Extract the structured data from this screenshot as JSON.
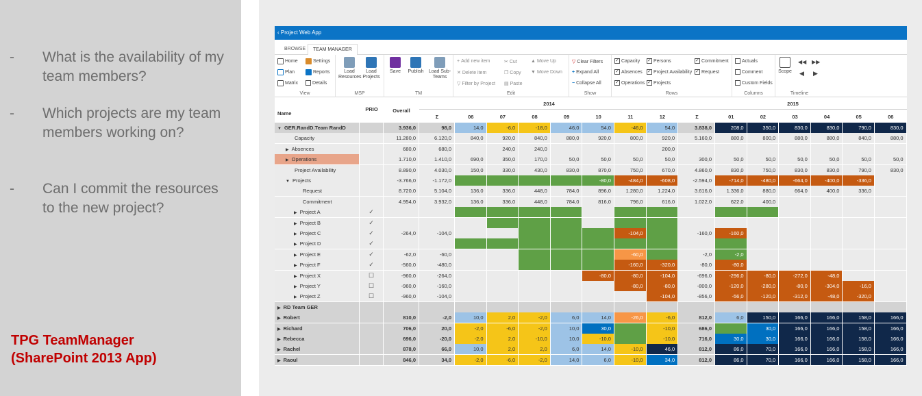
{
  "slide": {
    "questions": [
      "What is the availability of my team members?",
      "Which projects are my team members working on?",
      "Can I commit the resources to the new project?"
    ],
    "dash": "-",
    "brand_line1": "TPG TeamManager",
    "brand_line2": "(SharePoint 2013 App)"
  },
  "app": {
    "title": "Project Web App",
    "tabs": [
      "BROWSE",
      "TEAM MANAGER"
    ],
    "ribbon": {
      "view": {
        "label": "View",
        "home": "Home",
        "settings": "Settings",
        "plan": "Plan",
        "reports": "Reports",
        "matrix": "Matrix",
        "details": "Details"
      },
      "msp": {
        "label": "MSP",
        "load_resources": "Load Resources",
        "load_projects": "Load Projects"
      },
      "tm": {
        "label": "TM",
        "save": "Save",
        "publish": "Publish",
        "load_subteams": "Load Sub-Teams"
      },
      "edit": {
        "label": "Edit",
        "add": "Add new item",
        "delete": "Delete item",
        "filter": "Filter by Project",
        "cut": "Cut",
        "copy": "Copy",
        "paste": "Paste",
        "moveup": "Move Up",
        "movedown": "Move Down"
      },
      "show": {
        "label": "Show",
        "clear": "Clear Filters",
        "expand": "Expand All",
        "collapse": "Collapse All"
      },
      "rows": {
        "label": "Rows",
        "items": [
          {
            "t": "Capacity",
            "c": true
          },
          {
            "t": "Persons",
            "c": true
          },
          {
            "t": "Commitment",
            "c": true
          },
          {
            "t": "Absences",
            "c": true
          },
          {
            "t": "Project Availability",
            "c": true
          },
          {
            "t": "Request",
            "c": true
          },
          {
            "t": "Operations",
            "c": true
          },
          {
            "t": "Projects",
            "c": true
          }
        ]
      },
      "columns": {
        "label": "Columns",
        "items": [
          {
            "t": "Actuals",
            "c": false
          },
          {
            "t": "Comment",
            "c": false
          },
          {
            "t": "Custom Fields",
            "c": false
          }
        ]
      },
      "timeline": {
        "label": "Timeline",
        "scope": "Scope"
      }
    }
  },
  "colors": {
    "blue": "#9dc3e6",
    "yellow": "#f5c518",
    "green": "#5fa046",
    "red": "#c55a11",
    "orange": "#f79646",
    "navy": "#10284a",
    "bright": "#0070c0",
    "gray": "#d3d3d3",
    "lgray": "#ebebeb",
    "salmon": "#e8a58a"
  },
  "grid": {
    "header": {
      "name": "Name",
      "prio": "PRIO",
      "overall": "Overall",
      "y2014": "2014",
      "y2015": "2015",
      "sigma": "Σ",
      "months14": [
        "06",
        "07",
        "08",
        "09",
        "10",
        "11",
        "12"
      ],
      "months15": [
        "01",
        "02",
        "03",
        "04",
        "05",
        "06"
      ]
    },
    "rows": [
      {
        "name": "GER.RandD.Team RandD",
        "lvl": 0,
        "arrow": "▼",
        "bold": true,
        "bg": "gray",
        "overall": "3.936,0",
        "s1": "98,0",
        "m": [
          "14,0",
          "-6,0",
          "-18,0",
          "46,0",
          "54,0",
          "-46,0",
          "54,0"
        ],
        "mc": [
          "blue",
          "yellow",
          "yellow",
          "blue",
          "blue",
          "yellow",
          "blue"
        ],
        "s2": "3.838,0",
        "n": [
          "208,0",
          "350,0",
          "830,0",
          "830,0",
          "790,0",
          "830,0"
        ],
        "nc": [
          "navy",
          "navy",
          "navy",
          "navy",
          "navy",
          "navy"
        ]
      },
      {
        "name": "Capacity",
        "lvl": 1,
        "arrow": "",
        "bg": "lgray",
        "overall": "11.280,0",
        "s1": "6.120,0",
        "m": [
          "840,0",
          "920,0",
          "840,0",
          "880,0",
          "920,0",
          "800,0",
          "920,0"
        ],
        "s2": "5.160,0",
        "n": [
          "880,0",
          "800,0",
          "880,0",
          "880,0",
          "840,0",
          "880,0"
        ]
      },
      {
        "name": "Absences",
        "lvl": 1,
        "arrow": "▶",
        "bg": "lgray",
        "overall": "680,0",
        "s1": "680,0",
        "m": [
          "",
          "240,0",
          "240,0",
          "",
          "",
          "",
          "200,0"
        ],
        "s2": "",
        "n": [
          "",
          "",
          "",
          "",
          "",
          ""
        ]
      },
      {
        "name": "Operations",
        "lvl": 1,
        "arrow": "▶",
        "bg": "lgray",
        "namebg": "salmon",
        "overall": "1.710,0",
        "s1": "1.410,0",
        "m": [
          "690,0",
          "350,0",
          "170,0",
          "50,0",
          "50,0",
          "50,0",
          "50,0"
        ],
        "s2": "300,0",
        "n": [
          "50,0",
          "50,0",
          "50,0",
          "50,0",
          "50,0",
          "50,0"
        ]
      },
      {
        "name": "Project Availability",
        "lvl": 1,
        "arrow": "",
        "bg": "lgray",
        "overall": "8.890,0",
        "s1": "4.030,0",
        "m": [
          "150,0",
          "330,0",
          "430,0",
          "830,0",
          "870,0",
          "750,0",
          "670,0"
        ],
        "s2": "4.860,0",
        "n": [
          "830,0",
          "750,0",
          "830,0",
          "830,0",
          "790,0",
          "830,0"
        ]
      },
      {
        "name": "Projects",
        "lvl": 1,
        "arrow": "▼",
        "bg": "lgray",
        "overall": "-3.766,0",
        "s1": "-1.172,0",
        "m": [
          "",
          "",
          "",
          "",
          "-80,0",
          "-484,0",
          "-608,0"
        ],
        "mc": [
          "green",
          "green",
          "green",
          "green",
          "green",
          "red",
          "red"
        ],
        "s2": "-2.594,0",
        "n": [
          "-714,0",
          "-480,0",
          "-664,0",
          "-400,0",
          "-336,0",
          ""
        ],
        "nc": [
          "red",
          "red",
          "red",
          "red",
          "red",
          ""
        ]
      },
      {
        "name": "Request",
        "lvl": 2,
        "arrow": "",
        "bg": "lgray",
        "overall": "8.720,0",
        "s1": "5.104,0",
        "m": [
          "136,0",
          "336,0",
          "448,0",
          "784,0",
          "896,0",
          "1.280,0",
          "1.224,0"
        ],
        "s2": "3.616,0",
        "n": [
          "1.336,0",
          "880,0",
          "664,0",
          "400,0",
          "336,0",
          ""
        ]
      },
      {
        "name": "Commitment",
        "lvl": 2,
        "arrow": "",
        "bg": "lgray",
        "overall": "4.954,0",
        "s1": "3.932,0",
        "m": [
          "136,0",
          "336,0",
          "448,0",
          "784,0",
          "816,0",
          "796,0",
          "616,0"
        ],
        "s2": "1.022,0",
        "n": [
          "622,0",
          "400,0",
          "",
          "",
          "",
          ""
        ]
      },
      {
        "name": "Project A",
        "lvl": 2,
        "arrow": "▶",
        "prio": "✓",
        "bg": "lgray",
        "overall": "",
        "s1": "",
        "m": [
          "",
          "",
          "",
          "",
          "",
          "",
          ""
        ],
        "mc": [
          "green",
          "green",
          "green",
          "green",
          "",
          "green",
          "green"
        ],
        "s2": "",
        "n": [
          "",
          "",
          "",
          "",
          "",
          ""
        ],
        "nc": [
          "green",
          "green",
          "",
          "",
          "",
          ""
        ]
      },
      {
        "name": "Project B",
        "lvl": 2,
        "arrow": "▶",
        "prio": "✓",
        "bg": "lgray",
        "overall": "",
        "s1": "",
        "m": [
          "",
          "",
          "",
          "",
          "",
          "",
          ""
        ],
        "mc": [
          "",
          "green",
          "green",
          "green",
          "",
          "green",
          "green"
        ],
        "s2": "",
        "n": [
          "",
          "",
          "",
          "",
          "",
          ""
        ]
      },
      {
        "name": "Project C",
        "lvl": 2,
        "arrow": "▶",
        "prio": "✓",
        "bg": "lgray",
        "overall": "-264,0",
        "s1": "-104,0",
        "m": [
          "",
          "",
          "",
          "",
          "",
          "-104,0",
          ""
        ],
        "mc": [
          "",
          "",
          "green",
          "green",
          "green",
          "red",
          "green"
        ],
        "s2": "-160,0",
        "n": [
          "-160,0",
          "",
          "",
          "",
          "",
          ""
        ],
        "nc": [
          "red",
          "",
          "",
          "",
          "",
          ""
        ]
      },
      {
        "name": "Project D",
        "lvl": 2,
        "arrow": "▶",
        "prio": "✓",
        "bg": "lgray",
        "overall": "",
        "s1": "",
        "m": [
          "",
          "",
          "",
          "",
          "",
          "",
          ""
        ],
        "mc": [
          "green",
          "green",
          "green",
          "green",
          "green",
          "green",
          "green"
        ],
        "s2": "",
        "n": [
          "",
          "",
          "",
          "",
          "",
          ""
        ],
        "nc": [
          "green",
          "",
          "",
          "",
          "",
          ""
        ]
      },
      {
        "name": "Project E",
        "lvl": 2,
        "arrow": "▶",
        "prio": "✓",
        "bg": "lgray",
        "overall": "-62,0",
        "s1": "-60,0",
        "m": [
          "",
          "",
          "",
          "",
          "",
          "-60,0",
          ""
        ],
        "mc": [
          "",
          "",
          "green",
          "green",
          "green",
          "orange",
          "green"
        ],
        "s2": "-2,0",
        "n": [
          "-2,0",
          "",
          "",
          "",
          "",
          ""
        ],
        "nc": [
          "green",
          "",
          "",
          "",
          "",
          ""
        ]
      },
      {
        "name": "Project F",
        "lvl": 2,
        "arrow": "▶",
        "prio": "✓",
        "bg": "lgray",
        "overall": "-560,0",
        "s1": "-480,0",
        "m": [
          "",
          "",
          "",
          "",
          "",
          "-160,0",
          "-320,0"
        ],
        "mc": [
          "",
          "",
          "green",
          "green",
          "green",
          "red",
          "red"
        ],
        "s2": "-80,0",
        "n": [
          "-80,0",
          "",
          "",
          "",
          "",
          ""
        ],
        "nc": [
          "red",
          "",
          "",
          "",
          "",
          ""
        ]
      },
      {
        "name": "Project X",
        "lvl": 2,
        "arrow": "▶",
        "prio": "☐",
        "bg": "lgray",
        "overall": "-960,0",
        "s1": "-264,0",
        "m": [
          "",
          "",
          "",
          "",
          "-80,0",
          "-80,0",
          "-104,0"
        ],
        "mc": [
          "",
          "",
          "",
          "",
          "red",
          "red",
          "red"
        ],
        "s2": "-696,0",
        "n": [
          "-296,0",
          "-80,0",
          "-272,0",
          "-48,0",
          "",
          ""
        ],
        "nc": [
          "red",
          "red",
          "red",
          "red",
          "",
          ""
        ]
      },
      {
        "name": "Project Y",
        "lvl": 2,
        "arrow": "▶",
        "prio": "☐",
        "bg": "lgray",
        "overall": "-960,0",
        "s1": "-160,0",
        "m": [
          "",
          "",
          "",
          "",
          "",
          "-80,0",
          "-80,0"
        ],
        "mc": [
          "",
          "",
          "",
          "",
          "",
          "red",
          "red"
        ],
        "s2": "-800,0",
        "n": [
          "-120,0",
          "-280,0",
          "-80,0",
          "-304,0",
          "-16,0",
          ""
        ],
        "nc": [
          "red",
          "red",
          "red",
          "red",
          "red",
          ""
        ]
      },
      {
        "name": "Project Z",
        "lvl": 2,
        "arrow": "▶",
        "prio": "☐",
        "bg": "lgray",
        "overall": "-960,0",
        "s1": "-104,0",
        "m": [
          "",
          "",
          "",
          "",
          "",
          "",
          "-104,0"
        ],
        "mc": [
          "",
          "",
          "",
          "",
          "",
          "",
          "red"
        ],
        "s2": "-856,0",
        "n": [
          "-56,0",
          "-120,0",
          "-312,0",
          "-48,0",
          "-320,0",
          ""
        ],
        "nc": [
          "red",
          "red",
          "red",
          "red",
          "red",
          ""
        ]
      },
      {
        "name": "RD Team GER",
        "lvl": 0,
        "arrow": "▶",
        "bold": true,
        "bg": "gray",
        "overall": "",
        "s1": "",
        "m": [
          "",
          "",
          "",
          "",
          "",
          "",
          ""
        ],
        "s2": "",
        "n": [
          "",
          "",
          "",
          "",
          "",
          ""
        ]
      },
      {
        "name": "Robert",
        "lvl": 0,
        "arrow": "▶",
        "bold": true,
        "bg": "gray",
        "overall": "810,0",
        "s1": "-2,0",
        "m": [
          "10,0",
          "2,0",
          "-2,0",
          "6,0",
          "14,0",
          "-26,0",
          "-6,0"
        ],
        "mc": [
          "blue",
          "yellow",
          "yellow",
          "blue",
          "blue",
          "orange",
          "yellow"
        ],
        "s2": "812,0",
        "n": [
          "6,0",
          "150,0",
          "166,0",
          "166,0",
          "158,0",
          "166,0"
        ],
        "nc": [
          "blue",
          "navy",
          "navy",
          "navy",
          "navy",
          "navy"
        ]
      },
      {
        "name": "Richard",
        "lvl": 0,
        "arrow": "▶",
        "bold": true,
        "bg": "gray",
        "overall": "706,0",
        "s1": "20,0",
        "m": [
          "-2,0",
          "-6,0",
          "-2,0",
          "10,0",
          "30,0",
          "",
          "-10,0"
        ],
        "mc": [
          "yellow",
          "yellow",
          "yellow",
          "blue",
          "bright",
          "green",
          "yellow"
        ],
        "s2": "686,0",
        "n": [
          "",
          "30,0",
          "166,0",
          "166,0",
          "158,0",
          "166,0"
        ],
        "nc": [
          "green",
          "bright",
          "navy",
          "navy",
          "navy",
          "navy"
        ]
      },
      {
        "name": "Rebecca",
        "lvl": 0,
        "arrow": "▶",
        "bold": true,
        "bg": "gray",
        "overall": "696,0",
        "s1": "-20,0",
        "m": [
          "-2,0",
          "2,0",
          "-10,0",
          "10,0",
          "-10,0",
          "",
          "-10,0"
        ],
        "mc": [
          "yellow",
          "yellow",
          "yellow",
          "blue",
          "yellow",
          "green",
          "yellow"
        ],
        "s2": "716,0",
        "n": [
          "30,0",
          "30,0",
          "166,0",
          "166,0",
          "158,0",
          "166,0"
        ],
        "nc": [
          "bright",
          "bright",
          "navy",
          "navy",
          "navy",
          "navy"
        ]
      },
      {
        "name": "Rachel",
        "lvl": 0,
        "arrow": "▶",
        "bold": true,
        "bg": "gray",
        "overall": "878,0",
        "s1": "66,0",
        "m": [
          "10,0",
          "2,0",
          "2,0",
          "6,0",
          "14,0",
          "-10,0",
          "46,0"
        ],
        "mc": [
          "blue",
          "yellow",
          "yellow",
          "blue",
          "blue",
          "yellow",
          "navy"
        ],
        "s2": "812,0",
        "n": [
          "86,0",
          "70,0",
          "166,0",
          "166,0",
          "158,0",
          "166,0"
        ],
        "nc": [
          "navy",
          "navy",
          "navy",
          "navy",
          "navy",
          "navy"
        ]
      },
      {
        "name": "Raoul",
        "lvl": 0,
        "arrow": "▶",
        "bold": true,
        "bg": "gray",
        "overall": "846,0",
        "s1": "34,0",
        "m": [
          "-2,0",
          "-6,0",
          "-2,0",
          "14,0",
          "6,0",
          "-10,0",
          "34,0"
        ],
        "mc": [
          "yellow",
          "yellow",
          "yellow",
          "blue",
          "blue",
          "yellow",
          "bright"
        ],
        "s2": "812,0",
        "n": [
          "86,0",
          "70,0",
          "166,0",
          "166,0",
          "158,0",
          "166,0"
        ],
        "nc": [
          "navy",
          "navy",
          "navy",
          "navy",
          "navy",
          "navy"
        ]
      }
    ]
  }
}
